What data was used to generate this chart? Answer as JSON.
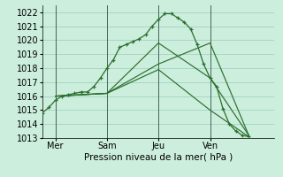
{
  "xlabel": "Pression niveau de la mer( hPa )",
  "background_color": "#cceedd",
  "grid_color": "#99ccbb",
  "line_color": "#2d6e2d",
  "ylim": [
    1013,
    1022.5
  ],
  "xlim": [
    0,
    108
  ],
  "x_ticks": [
    6,
    30,
    54,
    78
  ],
  "x_tick_labels": [
    "Mer",
    "Sam",
    "Jeu",
    "Ven"
  ],
  "x_vlines": [
    6,
    30,
    54,
    78
  ],
  "y_ticks": [
    1013,
    1014,
    1015,
    1016,
    1017,
    1018,
    1019,
    1020,
    1021,
    1022
  ],
  "line1_x": [
    0,
    3,
    6,
    9,
    12,
    15,
    18,
    21,
    24,
    27,
    30,
    33,
    36,
    39,
    42,
    45,
    48,
    51,
    54,
    57,
    60,
    63,
    66,
    69,
    72,
    75,
    78,
    81,
    84,
    87,
    90,
    93,
    96
  ],
  "line1_y": [
    1014.8,
    1015.2,
    1015.7,
    1016.0,
    1016.1,
    1016.2,
    1016.3,
    1016.3,
    1016.7,
    1017.3,
    1018.0,
    1018.6,
    1019.5,
    1019.7,
    1019.9,
    1020.1,
    1020.4,
    1021.0,
    1021.5,
    1021.9,
    1021.9,
    1021.6,
    1021.3,
    1020.8,
    1019.7,
    1018.3,
    1017.3,
    1016.7,
    1015.1,
    1014.0,
    1013.5,
    1013.2,
    1013.1
  ],
  "line2_x": [
    6,
    30,
    54,
    78,
    96
  ],
  "line2_y": [
    1016.0,
    1016.2,
    1019.8,
    1017.3,
    1013.2
  ],
  "line3_x": [
    6,
    30,
    54,
    78,
    96
  ],
  "line3_y": [
    1016.0,
    1016.2,
    1018.3,
    1019.8,
    1013.2
  ],
  "line4_x": [
    6,
    30,
    54,
    78,
    96
  ],
  "line4_y": [
    1016.0,
    1016.2,
    1017.9,
    1015.0,
    1013.1
  ]
}
